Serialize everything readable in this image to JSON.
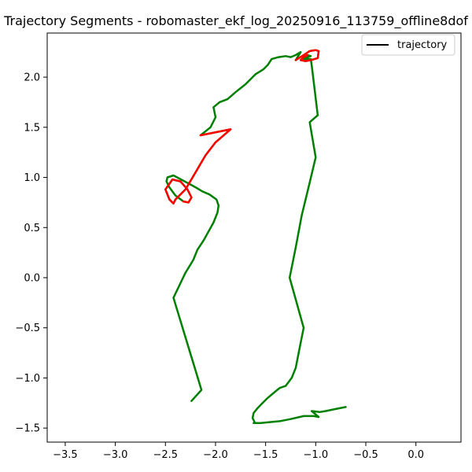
{
  "chart_data": {
    "type": "line",
    "title": "Trajectory Segments - robomaster_ekf_log_20250916_113759_offline8dof",
    "xlabel": "",
    "ylabel": "",
    "xlim": [
      -3.68,
      0.45
    ],
    "ylim": [
      -1.64,
      2.44
    ],
    "x_ticks": [
      -3.5,
      -3.0,
      -2.5,
      -2.0,
      -1.5,
      -1.0,
      -0.5,
      0.0
    ],
    "x_tick_labels": [
      "−3.5",
      "−3.0",
      "−2.5",
      "−2.0",
      "−1.5",
      "−1.0",
      "−0.5",
      "0.0"
    ],
    "y_ticks": [
      -1.5,
      -1.0,
      -0.5,
      0.0,
      0.5,
      1.0,
      1.5,
      2.0
    ],
    "y_tick_labels": [
      "−1.5",
      "−1.0",
      "−0.5",
      "0.0",
      "0.5",
      "1.0",
      "1.5",
      "2.0"
    ],
    "grid": false,
    "legend": {
      "placement": "top-right",
      "entries": [
        {
          "label": "trajectory",
          "color": "#000000"
        }
      ]
    },
    "series": [
      {
        "color": "#000000",
        "x": [
          -2.24,
          -2.14,
          -2.42,
          -2.3,
          -2.25,
          -2.22,
          -2.18,
          -2.12,
          -2.02,
          -1.98,
          -1.97,
          -1.99,
          -2.06,
          -2.13,
          -2.18,
          -2.25,
          -2.42,
          -2.48,
          -2.49,
          -2.46,
          -2.4,
          -2.32,
          -2.27,
          -2.24,
          -2.28,
          -2.35,
          -2.43,
          -2.5,
          -2.46,
          -2.42,
          -2.4,
          -2.3,
          -2.2,
          -2.1,
          -2.0,
          -1.85,
          -2.15,
          -2.05,
          -2.0,
          -2.02,
          -1.96,
          -1.88,
          -1.8,
          -1.7,
          -1.6,
          -1.52,
          -1.48,
          -1.44,
          -1.37,
          -1.3,
          -1.25,
          -1.2,
          -1.15,
          -1.2,
          -1.12,
          -1.06,
          -1.0,
          -0.97,
          -0.98,
          -1.05,
          -1.1,
          -1.15,
          -1.12,
          -1.08,
          -1.05,
          -1.13,
          -1.05,
          -1.04,
          -0.98,
          -1.05,
          -1.06,
          -1.0,
          -1.06,
          -1.14,
          -1.2,
          -1.26,
          -1.12,
          -1.16,
          -1.2,
          -1.24,
          -1.3,
          -1.36,
          -1.42,
          -1.48,
          -1.53,
          -1.58,
          -1.62,
          -1.63,
          -1.61,
          -1.62,
          -1.55,
          -1.45,
          -1.35,
          -1.25,
          -1.12,
          -1.02,
          -0.97,
          -1.04,
          -0.96,
          -0.9,
          -0.8,
          -0.7
        ],
        "y": [
          -1.23,
          -1.12,
          -0.2,
          0.05,
          0.13,
          0.18,
          0.28,
          0.37,
          0.55,
          0.65,
          0.72,
          0.78,
          0.83,
          0.86,
          0.89,
          0.93,
          1.02,
          1.0,
          0.96,
          0.9,
          0.82,
          0.76,
          0.75,
          0.8,
          0.88,
          0.96,
          0.98,
          0.88,
          0.78,
          0.74,
          0.78,
          0.88,
          1.05,
          1.22,
          1.35,
          1.48,
          1.42,
          1.5,
          1.6,
          1.7,
          1.75,
          1.78,
          1.85,
          1.93,
          2.03,
          2.08,
          2.12,
          2.18,
          2.2,
          2.21,
          2.2,
          2.22,
          2.25,
          2.17,
          2.22,
          2.26,
          2.27,
          2.26,
          2.19,
          2.17,
          2.16,
          2.17,
          2.2,
          2.22,
          2.21,
          2.18,
          2.18,
          2.12,
          1.62,
          1.56,
          1.55,
          1.2,
          0.95,
          0.62,
          0.3,
          0.0,
          -0.5,
          -0.7,
          -0.9,
          -1.0,
          -1.08,
          -1.1,
          -1.15,
          -1.2,
          -1.25,
          -1.3,
          -1.35,
          -1.4,
          -1.44,
          -1.45,
          -1.45,
          -1.44,
          -1.43,
          -1.41,
          -1.38,
          -1.38,
          -1.39,
          -1.33,
          -1.34,
          -1.33,
          -1.31,
          -1.29
        ]
      }
    ],
    "highlight_segments": [
      {
        "color": "#ff0000",
        "from": 21,
        "to": 36
      },
      {
        "color": "#ff0000",
        "from": 53,
        "to": 63
      }
    ],
    "overlay_color": "#008000"
  }
}
